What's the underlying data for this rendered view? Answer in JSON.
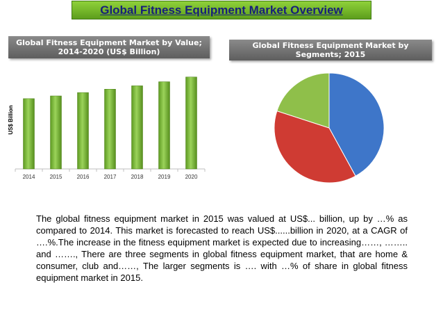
{
  "page_title": "Global Fitness Equipment Market Overview",
  "chart_data": [
    {
      "type": "bar",
      "title": "Global Fitness Equipment Market by Value; 2014-2020 (US$ Billion)",
      "categories": [
        "2014",
        "2015",
        "2016",
        "2017",
        "2018",
        "2019",
        "2020"
      ],
      "values": [
        10.4,
        10.8,
        11.3,
        11.8,
        12.3,
        12.9,
        13.6
      ],
      "xlabel": "",
      "ylabel": "US$ Billion",
      "ylim": [
        0,
        14.5
      ],
      "grid": false,
      "bar_color": "#7fc241"
    },
    {
      "type": "pie",
      "title": "Global Fitness Equipment Market by Segments; 2015",
      "values": [
        42,
        38,
        20
      ],
      "colors": [
        "#3e76c9",
        "#cf3b33",
        "#8fbf4a"
      ]
    }
  ],
  "body_text": "The global fitness equipment market in 2015 was valued at US$... billion, up by …% as compared to 2014. This market is forecasted to reach US$......billion in 2020, at a CAGR of ….%.The increase in the fitness equipment market is expected due to increasing……, …….. and ……., There are three segments in global fitness equipment market, that are home & consumer, club and……, The larger segments is …. with …% of share in global fitness equipment market in 2015."
}
